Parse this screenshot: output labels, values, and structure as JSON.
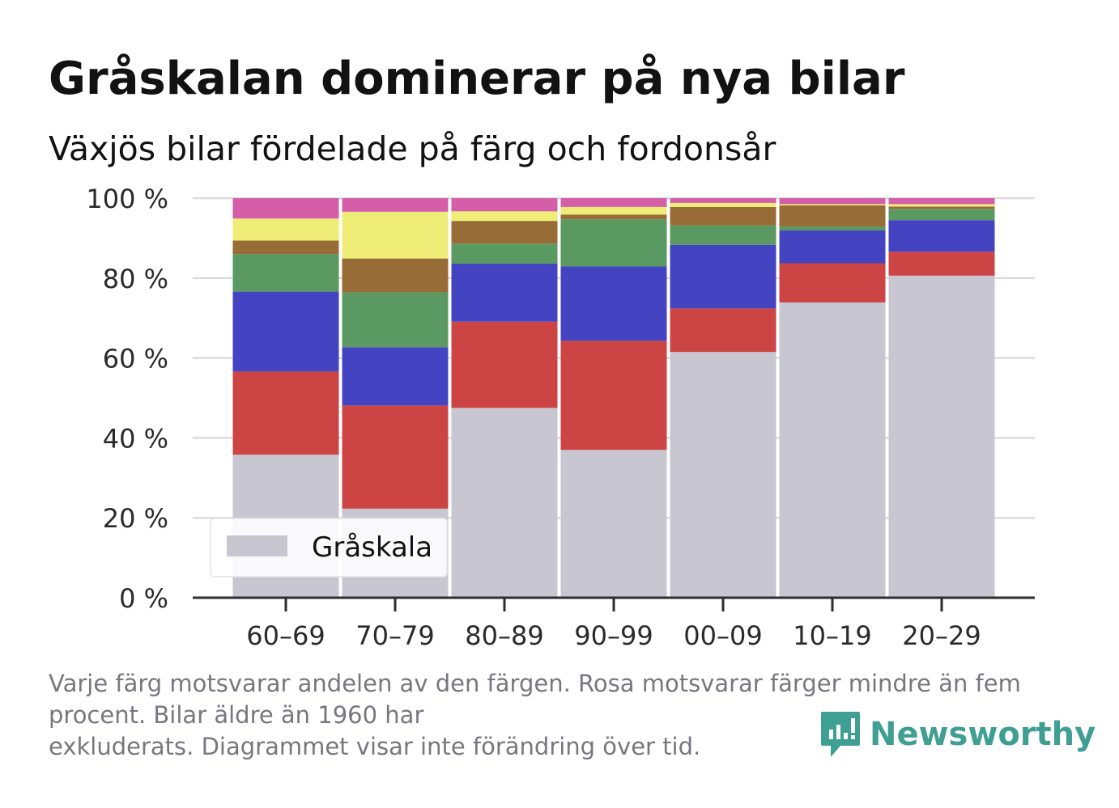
{
  "title": "Gråskalan dominerar på nya bilar",
  "subtitle": "Växjös bilar fördelade på färg och fordonsår",
  "note_line1": "Varje färg motsvarar andelen av den färgen. Rosa motsvarar färger mindre än fem procent. Bilar äldre än 1960 har",
  "note_line2": "exkluderats. Diagrammet visar inte förändring över tid.",
  "brand": "Newsworthy",
  "chart_data": {
    "type": "bar",
    "stacked": true,
    "categories": [
      "60–69",
      "70–79",
      "80–89",
      "90–99",
      "00–09",
      "10–19",
      "20–29"
    ],
    "series": [
      {
        "name": "Gråskala",
        "color": "#c8c6d1",
        "values": [
          35.8,
          22.3,
          47.5,
          37.0,
          61.5,
          73.9,
          80.6
        ]
      },
      {
        "color": "#cc4444",
        "values": [
          20.8,
          25.8,
          21.6,
          27.3,
          10.9,
          9.8,
          6.0
        ]
      },
      {
        "color": "#4444c2",
        "values": [
          20.0,
          14.6,
          14.5,
          18.6,
          15.9,
          8.2,
          7.9
        ]
      },
      {
        "color": "#5a9a62",
        "values": [
          9.4,
          13.7,
          5.0,
          11.8,
          4.9,
          1.0,
          2.8
        ]
      },
      {
        "color": "#986c36",
        "values": [
          3.4,
          8.5,
          5.7,
          1.2,
          4.6,
          5.3,
          0.6
        ]
      },
      {
        "color": "#eded77",
        "values": [
          5.5,
          11.7,
          2.4,
          1.9,
          1.0,
          0.3,
          0.6
        ]
      },
      {
        "color": "#d55ea8",
        "values": [
          5.1,
          3.4,
          3.3,
          2.2,
          1.2,
          1.5,
          1.5
        ]
      }
    ],
    "yticks": [
      "0 %",
      "20 %",
      "40 %",
      "60 %",
      "80 %",
      "100 %"
    ],
    "ylim": [
      0,
      100
    ],
    "grid": true,
    "legend": {
      "placement": "bottom-left",
      "label": "Gråskala"
    }
  }
}
